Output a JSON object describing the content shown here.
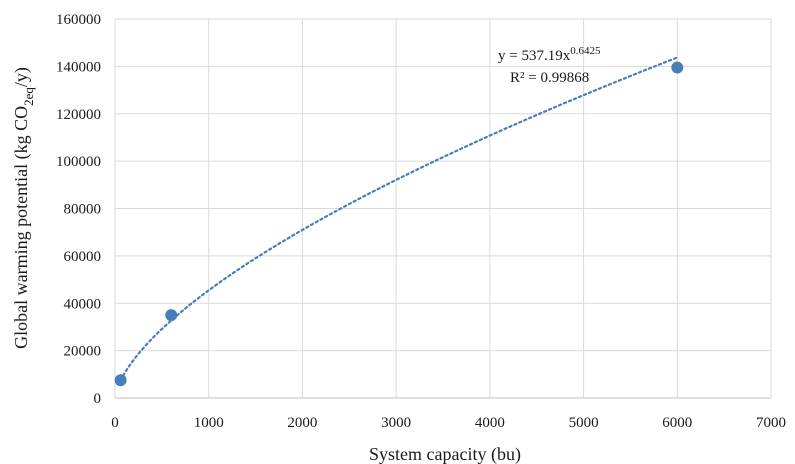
{
  "chart_data": {
    "type": "scatter",
    "xlabel": "System capacity (bu)",
    "ylabel_parts": {
      "main": "Global warming potential (kg CO",
      "sub": "2eq",
      "tail": "/y)"
    },
    "xlim": [
      0,
      7000
    ],
    "ylim": [
      0,
      160000
    ],
    "x_ticks": [
      0,
      1000,
      2000,
      3000,
      4000,
      5000,
      6000,
      7000
    ],
    "y_ticks": [
      0,
      20000,
      40000,
      60000,
      80000,
      100000,
      120000,
      140000,
      160000
    ],
    "x_tick_labels": [
      "0",
      "1000",
      "2000",
      "3000",
      "4000",
      "5000",
      "6000",
      "7000"
    ],
    "y_tick_labels": [
      "0",
      "20000",
      "40000",
      "60000",
      "80000",
      "100000",
      "120000",
      "140000",
      "160000"
    ],
    "grid": true,
    "point_color": "#4a7ebb",
    "trendline_color": "#4a7ebb",
    "series": [
      {
        "points": [
          {
            "x": 60,
            "y": 7500
          },
          {
            "x": 600,
            "y": 35000
          },
          {
            "x": 6000,
            "y": 139500
          }
        ]
      }
    ],
    "trendline": {
      "type": "power",
      "coefficient": 537.19,
      "exponent": 0.6425,
      "x_range": [
        60,
        6000
      ],
      "equation_base": "y = 537.19x",
      "equation_exponent": "0.6425",
      "r_squared_label": "R² = 0.99868"
    }
  }
}
